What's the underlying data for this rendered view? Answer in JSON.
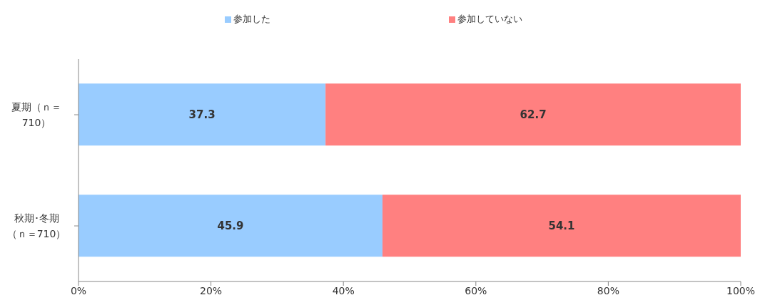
{
  "chart_data": {
    "type": "bar",
    "orientation": "horizontal",
    "stacked": true,
    "categories": [
      "夏期（ｎ＝710）",
      "秋期･冬期（ｎ＝710）"
    ],
    "series": [
      {
        "name": "参加した",
        "color": "#99ccff",
        "values": [
          37.3,
          45.9
        ]
      },
      {
        "name": "参加していない",
        "color": "#ff8080",
        "values": [
          62.7,
          54.1
        ]
      }
    ],
    "xlim": [
      0,
      100
    ],
    "xticks": [
      {
        "value": 0,
        "label": "0%"
      },
      {
        "value": 20,
        "label": "20%"
      },
      {
        "value": 40,
        "label": "40%"
      },
      {
        "value": 60,
        "label": "60%"
      },
      {
        "value": 80,
        "label": "80%"
      },
      {
        "value": 100,
        "label": "100%"
      }
    ],
    "data_labels": true,
    "legend": "top",
    "grid": false
  }
}
